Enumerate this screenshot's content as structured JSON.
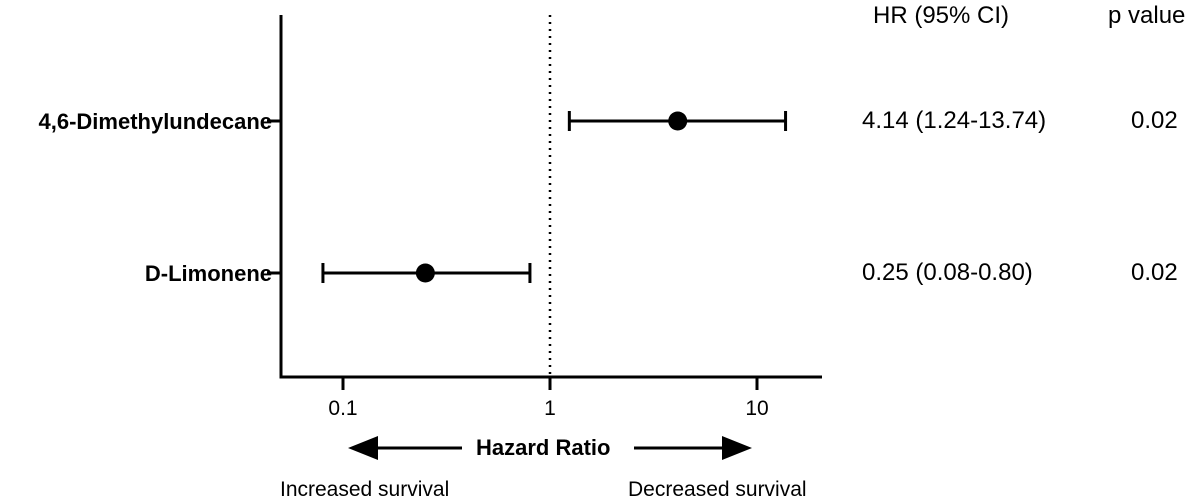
{
  "columns": {
    "hr_header": "HR (95% CI)",
    "p_header": "p value"
  },
  "chart_data": {
    "type": "forest",
    "x_scale": "log",
    "xlim": [
      0.05,
      20
    ],
    "xticks": [
      0.1,
      1,
      10
    ],
    "tick_labels": [
      "0.1",
      "1",
      "10"
    ],
    "reference_line": 1,
    "xlabel": "Hazard Ratio",
    "left_note": "Increased survival",
    "right_note": "Decreased survival",
    "rows": [
      {
        "label": "4,6-Dimethylundecane",
        "hr": 4.14,
        "lower": 1.24,
        "upper": 13.74,
        "hr_text": "4.14 (1.24-13.74)",
        "p": "0.02"
      },
      {
        "label": "D-Limonene",
        "hr": 0.25,
        "lower": 0.08,
        "upper": 0.8,
        "hr_text": "0.25 (0.08-0.80)",
        "p": "0.02"
      }
    ]
  }
}
